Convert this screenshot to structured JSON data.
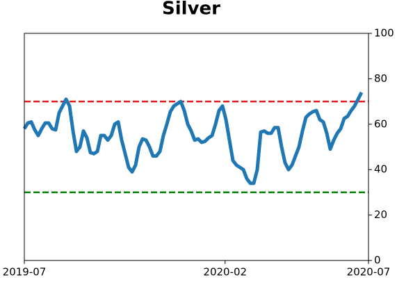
{
  "chart_data": {
    "type": "line",
    "title": "Silver",
    "xlim": [
      "2019-07",
      "2020-07"
    ],
    "xticks": [
      "2019-07",
      "2020-02",
      "2020-07"
    ],
    "ylim": [
      0,
      100
    ],
    "yticks": [
      0,
      20,
      40,
      60,
      80,
      100
    ],
    "y_axis_side": "right",
    "series": [
      {
        "color": "#1f77b4",
        "values": [
          58,
          60.5,
          61,
          57.5,
          55,
          58,
          60.5,
          60.5,
          58,
          57.5,
          65,
          68,
          71,
          68,
          57,
          48,
          50,
          57,
          54,
          47.5,
          47,
          48,
          55,
          55,
          53,
          55,
          60,
          61,
          53,
          47,
          41,
          39,
          42,
          50,
          53.5,
          53,
          50,
          46,
          46,
          48,
          55,
          60,
          65.5,
          68,
          69,
          70,
          66,
          60,
          57,
          53,
          53.5,
          52,
          52.5,
          54,
          55,
          60,
          66,
          68,
          62,
          53,
          44,
          42,
          41,
          40,
          36,
          34,
          34,
          40,
          56.5,
          57,
          56,
          56,
          58.5,
          58.5,
          50,
          43,
          40,
          42,
          46,
          50,
          57,
          63,
          64.5,
          65.5,
          66,
          62,
          61,
          56,
          49,
          53,
          56,
          58,
          62.5,
          63.5,
          66,
          68,
          71,
          74,
          null,
          null
        ]
      }
    ],
    "reference_lines": [
      {
        "value": 70,
        "color": "#e41a1c"
      },
      {
        "value": 30,
        "color": "#008000"
      }
    ]
  }
}
